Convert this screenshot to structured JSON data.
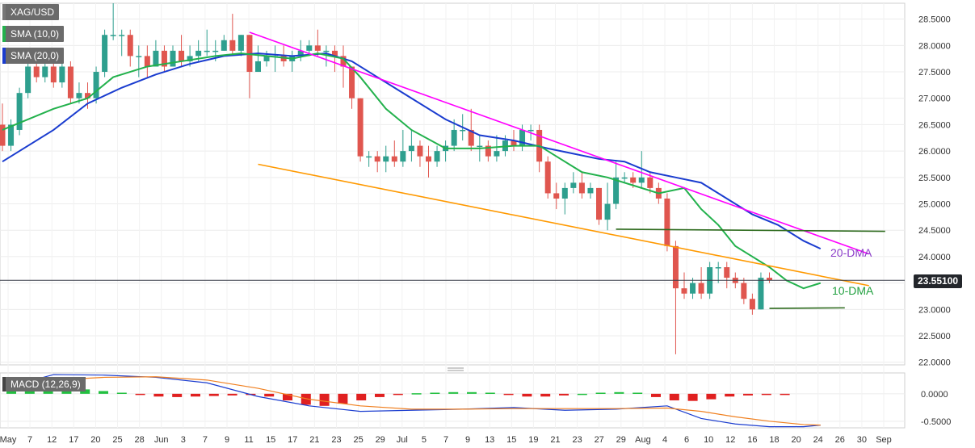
{
  "symbol": "XAG/USD",
  "legend": [
    {
      "label": "SMA (10,0)",
      "color": "#22b14c"
    },
    {
      "label": "SMA (20,0)",
      "color": "#1a3ccf"
    }
  ],
  "macd_label": "MACD (12,26,9)",
  "last_price": "23.55100",
  "annotations": {
    "dma20": "20-DMA",
    "dma10": "10-DMA"
  },
  "colors": {
    "up": "#2e9f8e",
    "down": "#e0564f",
    "sma10": "#22b14c",
    "sma20": "#1a3ccf",
    "resistance": "#ff00ff",
    "support": "#ff9900",
    "horizontal": "#2e6b1e",
    "macd_line": "#1a3ccf",
    "signal_line": "#f08020"
  },
  "chart_data": {
    "type": "candlestick",
    "x_ticks": [
      "May",
      "7",
      "12",
      "17",
      "20",
      "25",
      "28",
      "Jun",
      "3",
      "7",
      "9",
      "11",
      "15",
      "17",
      "21",
      "23",
      "25",
      "29",
      "Jul",
      "5",
      "7",
      "9",
      "13",
      "15",
      "19",
      "21",
      "23",
      "27",
      "29",
      "Aug",
      "4",
      "6",
      "10",
      "12",
      "16",
      "18",
      "20",
      "24",
      "26",
      "30",
      "Sep"
    ],
    "y_ticks": [
      "28.5000",
      "28.0000",
      "27.5000",
      "27.0000",
      "26.5000",
      "26.0000",
      "25.5000",
      "25.0000",
      "24.5000",
      "24.0000",
      "23.5000",
      "23.0000",
      "22.5000",
      "22.0000"
    ],
    "ylim": [
      21.95,
      28.8
    ],
    "macd_y_ticks": [
      "0.0000",
      "-0.5000"
    ],
    "macd_ylim": [
      -0.62,
      0.38
    ],
    "candles": [
      [
        26.5,
        26.1,
        26.9,
        26.0
      ],
      [
        26.1,
        26.5,
        26.6,
        26.0
      ],
      [
        26.4,
        27.1,
        27.2,
        26.3
      ],
      [
        27.1,
        27.6,
        27.7,
        27.0
      ],
      [
        27.6,
        27.4,
        27.7,
        27.3
      ],
      [
        27.4,
        27.6,
        27.8,
        27.3
      ],
      [
        27.6,
        27.3,
        27.8,
        27.2
      ],
      [
        27.3,
        27.6,
        27.8,
        27.2
      ],
      [
        27.6,
        27.0,
        27.7,
        26.9
      ],
      [
        27.0,
        27.1,
        27.3,
        26.9
      ],
      [
        27.1,
        27.0,
        27.3,
        26.8
      ],
      [
        27.0,
        27.5,
        27.6,
        26.9
      ],
      [
        27.5,
        28.2,
        28.3,
        27.4
      ],
      [
        28.2,
        28.2,
        28.8,
        28.1
      ],
      [
        28.2,
        28.2,
        28.3,
        27.8
      ],
      [
        28.2,
        27.8,
        28.3,
        27.6
      ],
      [
        27.8,
        27.8,
        28.0,
        27.4
      ],
      [
        27.8,
        27.6,
        28.0,
        27.4
      ],
      [
        27.6,
        27.9,
        28.1,
        27.6
      ],
      [
        27.9,
        27.6,
        28.0,
        27.5
      ],
      [
        27.6,
        27.9,
        28.0,
        27.6
      ],
      [
        27.9,
        27.7,
        28.2,
        27.6
      ],
      [
        27.7,
        27.8,
        28.0,
        27.6
      ],
      [
        27.8,
        27.9,
        28.1,
        27.7
      ],
      [
        27.9,
        27.9,
        28.3,
        27.8
      ],
      [
        27.9,
        27.9,
        28.1,
        27.7
      ],
      [
        27.9,
        28.1,
        28.2,
        27.9
      ],
      [
        28.1,
        27.9,
        28.6,
        27.8
      ],
      [
        27.9,
        28.2,
        28.2,
        27.8
      ],
      [
        28.2,
        27.5,
        28.2,
        27.0
      ],
      [
        27.5,
        27.7,
        28.0,
        27.6
      ],
      [
        27.7,
        27.8,
        27.9,
        27.6
      ],
      [
        27.8,
        27.8,
        28.0,
        27.5
      ],
      [
        27.8,
        27.7,
        28.0,
        27.6
      ],
      [
        27.7,
        27.8,
        27.9,
        27.5
      ],
      [
        27.8,
        27.9,
        28.1,
        27.7
      ],
      [
        27.9,
        28.0,
        28.1,
        27.8
      ],
      [
        28.0,
        27.9,
        28.3,
        27.8
      ],
      [
        27.9,
        27.9,
        28.0,
        27.6
      ],
      [
        27.9,
        27.8,
        28.0,
        27.5
      ],
      [
        27.8,
        27.6,
        28.0,
        27.2
      ],
      [
        27.6,
        27.0,
        27.6,
        26.8
      ],
      [
        27.0,
        25.9,
        27.0,
        25.8
      ],
      [
        25.9,
        25.9,
        26.0,
        25.7
      ],
      [
        25.9,
        25.8,
        26.0,
        25.6
      ],
      [
        25.8,
        25.9,
        26.1,
        25.6
      ],
      [
        25.9,
        25.8,
        26.2,
        25.7
      ],
      [
        25.8,
        26.0,
        26.4,
        25.7
      ],
      [
        26.0,
        26.1,
        26.4,
        25.8
      ],
      [
        26.1,
        25.9,
        26.2,
        25.7
      ],
      [
        25.9,
        25.8,
        26.1,
        25.5
      ],
      [
        25.8,
        26.0,
        26.1,
        25.7
      ],
      [
        26.0,
        26.1,
        26.2,
        25.8
      ],
      [
        26.1,
        26.4,
        26.6,
        26.0
      ],
      [
        26.4,
        26.4,
        26.7,
        26.2
      ],
      [
        26.4,
        26.1,
        26.8,
        26.0
      ],
      [
        26.1,
        26.1,
        26.3,
        25.8
      ],
      [
        26.1,
        25.9,
        26.2,
        25.8
      ],
      [
        25.9,
        26.0,
        26.3,
        25.8
      ],
      [
        26.0,
        26.2,
        26.3,
        25.9
      ],
      [
        26.2,
        26.1,
        26.4,
        26.0
      ],
      [
        26.1,
        26.4,
        26.5,
        26.0
      ],
      [
        26.4,
        26.4,
        26.5,
        26.2
      ],
      [
        26.4,
        25.8,
        26.5,
        25.6
      ],
      [
        25.8,
        25.2,
        25.9,
        25.1
      ],
      [
        25.2,
        25.1,
        25.4,
        24.9
      ],
      [
        25.1,
        25.3,
        25.4,
        24.8
      ],
      [
        25.3,
        25.4,
        25.6,
        25.2
      ],
      [
        25.4,
        25.2,
        25.6,
        25.1
      ],
      [
        25.2,
        25.3,
        25.4,
        25.1
      ],
      [
        25.3,
        24.7,
        25.3,
        24.6
      ],
      [
        24.7,
        25.0,
        25.4,
        24.5
      ],
      [
        25.0,
        25.5,
        25.8,
        24.9
      ],
      [
        25.5,
        25.5,
        25.6,
        25.4
      ],
      [
        25.5,
        25.4,
        25.6,
        25.3
      ],
      [
        25.4,
        25.5,
        26.0,
        25.3
      ],
      [
        25.5,
        25.3,
        25.6,
        25.2
      ],
      [
        25.3,
        25.1,
        25.4,
        25.0
      ],
      [
        25.1,
        24.2,
        25.2,
        24.1
      ],
      [
        24.2,
        23.4,
        24.3,
        22.15
      ],
      [
        23.4,
        23.3,
        23.7,
        23.2
      ],
      [
        23.3,
        23.5,
        23.6,
        23.2
      ],
      [
        23.5,
        23.3,
        23.8,
        23.2
      ],
      [
        23.3,
        23.8,
        23.9,
        23.2
      ],
      [
        23.8,
        23.8,
        23.9,
        23.5
      ],
      [
        23.8,
        23.6,
        23.9,
        23.4
      ],
      [
        23.6,
        23.5,
        23.7,
        23.4
      ],
      [
        23.5,
        23.2,
        23.6,
        23.1
      ],
      [
        23.2,
        23.0,
        23.3,
        22.9
      ],
      [
        23.0,
        23.6,
        23.7,
        23.0
      ],
      [
        23.6,
        23.55,
        23.7,
        23.5
      ]
    ],
    "sma10": [
      [
        0,
        26.4
      ],
      [
        6,
        26.8
      ],
      [
        10,
        27.0
      ],
      [
        13,
        27.4
      ],
      [
        17,
        27.6
      ],
      [
        21,
        27.7
      ],
      [
        25,
        27.8
      ],
      [
        28,
        27.85
      ],
      [
        31,
        27.8
      ],
      [
        34,
        27.75
      ],
      [
        37,
        27.85
      ],
      [
        40,
        27.75
      ],
      [
        42,
        27.4
      ],
      [
        45,
        26.8
      ],
      [
        48,
        26.4
      ],
      [
        52,
        26.05
      ],
      [
        56,
        26.05
      ],
      [
        60,
        26.1
      ],
      [
        63,
        26.1
      ],
      [
        65,
        25.9
      ],
      [
        68,
        25.6
      ],
      [
        71,
        25.5
      ],
      [
        74,
        25.35
      ],
      [
        77,
        25.2
      ],
      [
        80,
        25.3
      ],
      [
        82,
        24.9
      ],
      [
        84,
        24.6
      ],
      [
        86,
        24.2
      ],
      [
        88,
        24.0
      ],
      [
        90,
        23.8
      ],
      [
        92,
        23.55
      ],
      [
        94,
        23.4
      ],
      [
        96,
        23.5
      ]
    ],
    "sma20": [
      [
        0,
        25.8
      ],
      [
        6,
        26.4
      ],
      [
        10,
        26.9
      ],
      [
        14,
        27.2
      ],
      [
        18,
        27.45
      ],
      [
        22,
        27.65
      ],
      [
        26,
        27.8
      ],
      [
        30,
        27.85
      ],
      [
        34,
        27.8
      ],
      [
        38,
        27.85
      ],
      [
        41,
        27.7
      ],
      [
        44,
        27.4
      ],
      [
        48,
        27.0
      ],
      [
        52,
        26.6
      ],
      [
        56,
        26.3
      ],
      [
        60,
        26.2
      ],
      [
        64,
        26.05
      ],
      [
        67,
        25.95
      ],
      [
        70,
        25.85
      ],
      [
        73,
        25.8
      ],
      [
        76,
        25.6
      ],
      [
        79,
        25.5
      ],
      [
        82,
        25.4
      ],
      [
        85,
        25.1
      ],
      [
        88,
        24.8
      ],
      [
        91,
        24.6
      ],
      [
        94,
        24.3
      ],
      [
        96,
        24.15
      ]
    ],
    "macd_hist": [
      0.09,
      0.1,
      0.12,
      0.1,
      0.08,
      0.05,
      0.02,
      -0.02,
      -0.05,
      -0.06,
      -0.05,
      -0.04,
      -0.03,
      -0.02,
      -0.05,
      -0.12,
      -0.2,
      -0.22,
      -0.18,
      -0.12,
      -0.06,
      -0.02,
      0.01,
      0.02,
      0.03,
      0.03,
      0.02,
      -0.02,
      -0.05,
      -0.05,
      -0.03,
      0.0,
      0.02,
      0.03,
      0.02,
      -0.06,
      -0.12,
      -0.13,
      -0.1,
      -0.05,
      -0.03,
      -0.02,
      -0.01
    ],
    "macd_line": [
      [
        0,
        0.1
      ],
      [
        6,
        0.35
      ],
      [
        12,
        0.34
      ],
      [
        18,
        0.3
      ],
      [
        24,
        0.2
      ],
      [
        30,
        -0.05
      ],
      [
        36,
        -0.22
      ],
      [
        42,
        -0.32
      ],
      [
        48,
        -0.3
      ],
      [
        54,
        -0.28
      ],
      [
        60,
        -0.25
      ],
      [
        66,
        -0.3
      ],
      [
        72,
        -0.28
      ],
      [
        78,
        -0.22
      ],
      [
        82,
        -0.45
      ],
      [
        86,
        -0.55
      ],
      [
        90,
        -0.6
      ],
      [
        94,
        -0.6
      ],
      [
        96,
        -0.57
      ]
    ],
    "signal_line": [
      [
        0,
        0.08
      ],
      [
        6,
        0.25
      ],
      [
        12,
        0.3
      ],
      [
        18,
        0.31
      ],
      [
        24,
        0.25
      ],
      [
        30,
        0.1
      ],
      [
        36,
        -0.1
      ],
      [
        42,
        -0.22
      ],
      [
        48,
        -0.28
      ],
      [
        54,
        -0.28
      ],
      [
        60,
        -0.27
      ],
      [
        66,
        -0.27
      ],
      [
        72,
        -0.27
      ],
      [
        78,
        -0.26
      ],
      [
        82,
        -0.32
      ],
      [
        86,
        -0.42
      ],
      [
        90,
        -0.5
      ],
      [
        94,
        -0.56
      ],
      [
        96,
        -0.57
      ]
    ],
    "trendlines": [
      {
        "kind": "resistance",
        "from": [
          29,
          28.25
        ],
        "to": [
          96,
          24.05
        ]
      },
      {
        "kind": "support",
        "from": [
          30,
          25.75
        ],
        "to": [
          96,
          23.45
        ]
      },
      {
        "kind": "horizontal",
        "from": [
          72,
          24.52
        ],
        "to": [
          96,
          24.48
        ]
      },
      {
        "kind": "horizontal",
        "from": [
          90,
          23.02
        ],
        "to": [
          96,
          23.03
        ]
      }
    ]
  }
}
